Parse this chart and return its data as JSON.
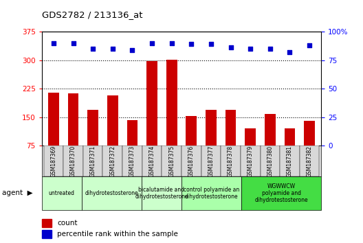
{
  "title": "GDS2782 / 213136_at",
  "samples": [
    "GSM187369",
    "GSM187370",
    "GSM187371",
    "GSM187372",
    "GSM187373",
    "GSM187374",
    "GSM187375",
    "GSM187376",
    "GSM187377",
    "GSM187378",
    "GSM187379",
    "GSM187380",
    "GSM187381",
    "GSM187382"
  ],
  "counts": [
    215,
    212,
    170,
    207,
    143,
    298,
    302,
    153,
    170,
    170,
    120,
    158,
    120,
    140
  ],
  "percentile_ranks": [
    90,
    90,
    85,
    85,
    84,
    90,
    90,
    89,
    89,
    86,
    85,
    85,
    82,
    88
  ],
  "ylim_left": [
    75,
    375
  ],
  "ylim_right": [
    0,
    100
  ],
  "yticks_left": [
    75,
    150,
    225,
    300,
    375
  ],
  "yticks_right": [
    0,
    25,
    50,
    75,
    100
  ],
  "bar_color": "#cc0000",
  "dot_color": "#0000cc",
  "groups": [
    {
      "label": "untreated",
      "start": 0,
      "end": 2,
      "color": "#ccffcc"
    },
    {
      "label": "dihydrotestosterone",
      "start": 2,
      "end": 5,
      "color": "#ccffcc"
    },
    {
      "label": "bicalutamide and\ndihydrotestosterone",
      "start": 5,
      "end": 7,
      "color": "#ccffcc"
    },
    {
      "label": "control polyamide an\ndihydrotestosterone",
      "start": 7,
      "end": 10,
      "color": "#aaffaa"
    },
    {
      "label": "WGWWCW\npolyamide and\ndihydrotestosterone",
      "start": 10,
      "end": 14,
      "color": "#44dd44"
    }
  ],
  "legend_count_label": "count",
  "legend_pct_label": "percentile rank within the sample",
  "bg_gray": "#d8d8d8",
  "tick_label_bg": "#d0d0d0"
}
